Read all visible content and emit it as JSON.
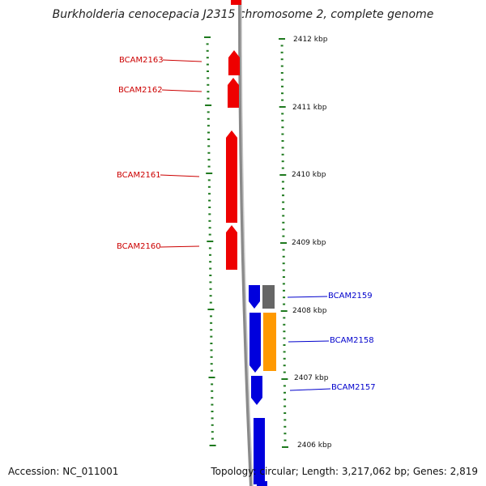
{
  "title": "Burkholderia cenocepacia J2315 chromosome 2, complete genome",
  "accession_label": "Accession: NC_011001",
  "genome_info": "Topology: circular; Length: 3,217,062 bp; Genes: 2,819",
  "colors": {
    "forward_gene": "#ee0000",
    "reverse_gene": "#0000dd",
    "gray_gene": "#666666",
    "orange_gene": "#ff9900",
    "backbone": "#8a8a8a",
    "tick": "#1f7a1f",
    "forward_label": "#cc0000",
    "reverse_label": "#0000cc"
  },
  "scale_units": "kbp",
  "scale_ticks": [
    {
      "label": "2412 kbp"
    },
    {
      "label": "2411 kbp"
    },
    {
      "label": "2410 kbp"
    },
    {
      "label": "2409 kbp"
    },
    {
      "label": "2408 kbp"
    },
    {
      "label": "2407 kbp"
    },
    {
      "label": "2406 kbp"
    }
  ],
  "genes": [
    {
      "name": "BCAM2163",
      "strand": "forward",
      "color_key": "forward_gene"
    },
    {
      "name": "BCAM2162",
      "strand": "forward",
      "color_key": "forward_gene"
    },
    {
      "name": "BCAM2161",
      "strand": "forward",
      "color_key": "forward_gene"
    },
    {
      "name": "BCAM2160",
      "strand": "forward",
      "color_key": "forward_gene"
    },
    {
      "name": "BCAM2159",
      "strand": "reverse",
      "color_key": "reverse_gene"
    },
    {
      "name": "BCAM2158",
      "strand": "reverse",
      "color_key": "reverse_gene"
    },
    {
      "name": "BCAM2157",
      "strand": "reverse",
      "color_key": "reverse_gene"
    }
  ],
  "other_features": [
    {
      "strand": "reverse",
      "color_key": "gray_gene"
    },
    {
      "strand": "reverse",
      "color_key": "orange_gene"
    }
  ]
}
